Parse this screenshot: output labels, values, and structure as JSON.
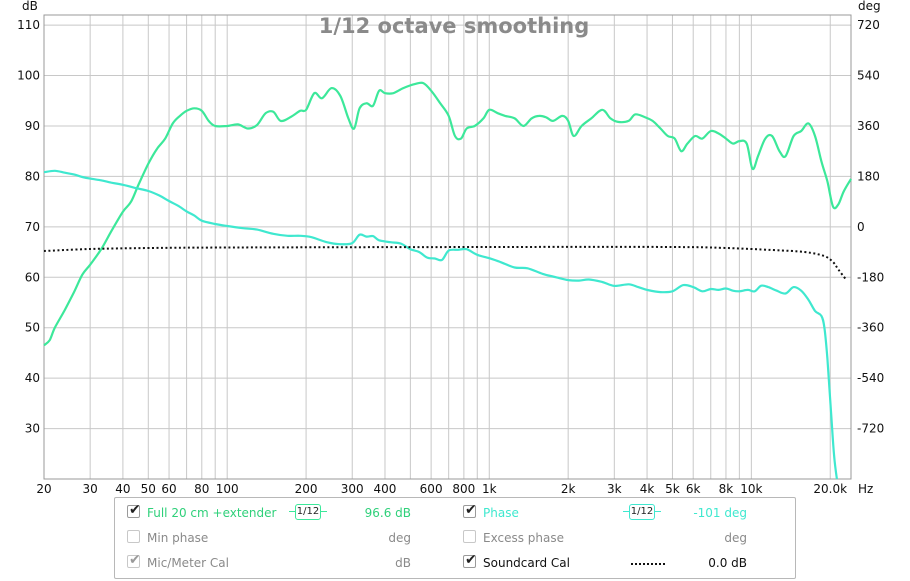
{
  "chart_data": {
    "type": "line",
    "title": "1/12 octave smoothing",
    "xscale": "log",
    "xlim": [
      20,
      24000
    ],
    "x_ticks": [
      {
        "v": 20,
        "l": "20"
      },
      {
        "v": 30,
        "l": "30"
      },
      {
        "v": 40,
        "l": "40"
      },
      {
        "v": 50,
        "l": "50"
      },
      {
        "v": 60,
        "l": "60"
      },
      {
        "v": 80,
        "l": "80"
      },
      {
        "v": 100,
        "l": "100"
      },
      {
        "v": 200,
        "l": "200"
      },
      {
        "v": 300,
        "l": "300"
      },
      {
        "v": 400,
        "l": "400"
      },
      {
        "v": 600,
        "l": "600"
      },
      {
        "v": 800,
        "l": "800"
      },
      {
        "v": 1000,
        "l": "1k"
      },
      {
        "v": 2000,
        "l": "2k"
      },
      {
        "v": 3000,
        "l": "3k"
      },
      {
        "v": 4000,
        "l": "4k"
      },
      {
        "v": 5000,
        "l": "5k"
      },
      {
        "v": 6000,
        "l": "6k"
      },
      {
        "v": 8000,
        "l": "8k"
      },
      {
        "v": 10000,
        "l": "10k"
      },
      {
        "v": 20000,
        "l": "20.0k"
      }
    ],
    "x_unit": "Hz",
    "x_minor": [
      20,
      30,
      40,
      50,
      60,
      70,
      80,
      90,
      100,
      200,
      300,
      400,
      500,
      600,
      700,
      800,
      900,
      1000,
      2000,
      3000,
      4000,
      5000,
      6000,
      7000,
      8000,
      9000,
      10000,
      20000
    ],
    "y_left": {
      "unit": "dB",
      "lim": [
        20,
        112
      ],
      "ticks": [
        110,
        100,
        90,
        80,
        70,
        60,
        50,
        40,
        30
      ]
    },
    "y_right": {
      "unit": "deg",
      "lim": [
        -900,
        756
      ],
      "ticks": [
        720,
        540,
        360,
        180,
        0,
        -180,
        -360,
        -540,
        -720
      ]
    },
    "grid": true,
    "series": [
      {
        "name": "Full 20 cm +extender",
        "color": "#3ce89a",
        "axis": "left",
        "style": "solid",
        "points": [
          [
            20,
            46.5
          ],
          [
            21,
            47.5
          ],
          [
            22,
            50
          ],
          [
            24,
            53.5
          ],
          [
            26,
            57
          ],
          [
            28,
            60.5
          ],
          [
            30,
            62.5
          ],
          [
            33,
            65.5
          ],
          [
            36,
            69
          ],
          [
            40,
            73
          ],
          [
            43,
            75
          ],
          [
            46,
            78.5
          ],
          [
            50,
            82.5
          ],
          [
            54,
            85.5
          ],
          [
            58,
            87.5
          ],
          [
            62,
            90.5
          ],
          [
            66,
            92
          ],
          [
            70,
            93
          ],
          [
            75,
            93.5
          ],
          [
            80,
            93
          ],
          [
            85,
            91
          ],
          [
            90,
            90
          ],
          [
            100,
            90
          ],
          [
            110,
            90.3
          ],
          [
            120,
            89.5
          ],
          [
            130,
            90.2
          ],
          [
            140,
            92.5
          ],
          [
            150,
            92.8
          ],
          [
            160,
            91
          ],
          [
            175,
            91.8
          ],
          [
            190,
            93
          ],
          [
            200,
            93.2
          ],
          [
            215,
            96.5
          ],
          [
            230,
            95.5
          ],
          [
            250,
            97.5
          ],
          [
            270,
            96
          ],
          [
            290,
            91.5
          ],
          [
            305,
            89.5
          ],
          [
            320,
            93.5
          ],
          [
            340,
            94.5
          ],
          [
            360,
            94
          ],
          [
            380,
            97
          ],
          [
            400,
            96.5
          ],
          [
            430,
            96.5
          ],
          [
            470,
            97.5
          ],
          [
            520,
            98.3
          ],
          [
            560,
            98.5
          ],
          [
            600,
            97
          ],
          [
            650,
            94.5
          ],
          [
            700,
            92
          ],
          [
            740,
            88
          ],
          [
            780,
            87.5
          ],
          [
            820,
            89.5
          ],
          [
            880,
            90
          ],
          [
            950,
            91.5
          ],
          [
            1000,
            93.2
          ],
          [
            1080,
            92.5
          ],
          [
            1150,
            92
          ],
          [
            1250,
            91.5
          ],
          [
            1350,
            90
          ],
          [
            1450,
            91.5
          ],
          [
            1550,
            92
          ],
          [
            1650,
            91.7
          ],
          [
            1750,
            91
          ],
          [
            1900,
            92
          ],
          [
            2000,
            91
          ],
          [
            2100,
            88
          ],
          [
            2250,
            90
          ],
          [
            2450,
            91.5
          ],
          [
            2700,
            93.2
          ],
          [
            2900,
            91.5
          ],
          [
            3100,
            90.8
          ],
          [
            3400,
            91
          ],
          [
            3600,
            92.3
          ],
          [
            3900,
            91.8
          ],
          [
            4200,
            91
          ],
          [
            4500,
            89.5
          ],
          [
            4800,
            88
          ],
          [
            5100,
            87.5
          ],
          [
            5400,
            85
          ],
          [
            5700,
            86.5
          ],
          [
            6100,
            88
          ],
          [
            6500,
            87.5
          ],
          [
            7000,
            89
          ],
          [
            7500,
            88.5
          ],
          [
            8000,
            87.5
          ],
          [
            8500,
            86.5
          ],
          [
            9000,
            87
          ],
          [
            9600,
            86.5
          ],
          [
            10100,
            81.5
          ],
          [
            10600,
            84
          ],
          [
            11300,
            87.5
          ],
          [
            12000,
            88
          ],
          [
            12800,
            85
          ],
          [
            13500,
            84
          ],
          [
            14500,
            88
          ],
          [
            15500,
            89
          ],
          [
            16500,
            90.5
          ],
          [
            17500,
            88
          ],
          [
            18500,
            83
          ],
          [
            19500,
            79
          ],
          [
            20500,
            74
          ],
          [
            21500,
            74.5
          ],
          [
            22500,
            77
          ],
          [
            24000,
            79.5
          ]
        ]
      },
      {
        "name": "Phase",
        "color": "#3fe8cf",
        "axis": "right",
        "style": "solid",
        "points": [
          [
            20,
            195
          ],
          [
            22,
            200
          ],
          [
            24,
            193
          ],
          [
            26,
            187
          ],
          [
            28,
            178
          ],
          [
            30,
            172
          ],
          [
            33,
            166
          ],
          [
            36,
            158
          ],
          [
            40,
            150
          ],
          [
            45,
            138
          ],
          [
            50,
            128
          ],
          [
            55,
            112
          ],
          [
            60,
            92
          ],
          [
            65,
            75
          ],
          [
            70,
            55
          ],
          [
            75,
            40
          ],
          [
            80,
            22
          ],
          [
            90,
            10
          ],
          [
            100,
            3
          ],
          [
            115,
            -5
          ],
          [
            130,
            -10
          ],
          [
            150,
            -25
          ],
          [
            170,
            -32
          ],
          [
            190,
            -32
          ],
          [
            210,
            -37
          ],
          [
            240,
            -55
          ],
          [
            270,
            -62
          ],
          [
            300,
            -58
          ],
          [
            320,
            -28
          ],
          [
            340,
            -35
          ],
          [
            360,
            -33
          ],
          [
            380,
            -48
          ],
          [
            420,
            -55
          ],
          [
            460,
            -60
          ],
          [
            500,
            -80
          ],
          [
            540,
            -90
          ],
          [
            580,
            -110
          ],
          [
            620,
            -113
          ],
          [
            660,
            -118
          ],
          [
            700,
            -85
          ],
          [
            760,
            -82
          ],
          [
            820,
            -80
          ],
          [
            900,
            -100
          ],
          [
            1000,
            -112
          ],
          [
            1100,
            -125
          ],
          [
            1250,
            -145
          ],
          [
            1400,
            -148
          ],
          [
            1600,
            -168
          ],
          [
            1800,
            -180
          ],
          [
            2000,
            -190
          ],
          [
            2200,
            -192
          ],
          [
            2400,
            -188
          ],
          [
            2700,
            -197
          ],
          [
            3000,
            -211
          ],
          [
            3400,
            -205
          ],
          [
            3700,
            -215
          ],
          [
            4000,
            -225
          ],
          [
            4500,
            -233
          ],
          [
            5000,
            -230
          ],
          [
            5500,
            -208
          ],
          [
            6000,
            -215
          ],
          [
            6500,
            -230
          ],
          [
            7000,
            -222
          ],
          [
            7500,
            -225
          ],
          [
            8000,
            -220
          ],
          [
            8500,
            -228
          ],
          [
            9000,
            -230
          ],
          [
            9700,
            -225
          ],
          [
            10300,
            -230
          ],
          [
            10900,
            -210
          ],
          [
            11600,
            -215
          ],
          [
            12500,
            -228
          ],
          [
            13500,
            -238
          ],
          [
            14500,
            -215
          ],
          [
            15500,
            -228
          ],
          [
            16500,
            -260
          ],
          [
            17500,
            -300
          ],
          [
            18500,
            -318
          ],
          [
            19000,
            -360
          ],
          [
            19500,
            -470
          ],
          [
            20200,
            -680
          ],
          [
            20700,
            -820
          ],
          [
            21200,
            -900
          ]
        ]
      },
      {
        "name": "Soundcard Cal",
        "color": "#111111",
        "axis": "left",
        "style": "dotted",
        "points": [
          [
            20,
            65.2
          ],
          [
            30,
            65.6
          ],
          [
            50,
            65.8
          ],
          [
            100,
            65.9
          ],
          [
            1000,
            66
          ],
          [
            5000,
            66
          ],
          [
            8000,
            65.8
          ],
          [
            12000,
            65.4
          ],
          [
            16000,
            65
          ],
          [
            19000,
            64.2
          ],
          [
            20500,
            63
          ],
          [
            21500,
            61.5
          ],
          [
            23000,
            59.5
          ]
        ]
      }
    ]
  },
  "legend": {
    "row1": {
      "label": "Full 20 cm +extender",
      "smoothing_num": "1",
      "smoothing_den": "12",
      "value": "96.6 dB",
      "right_label": "Phase",
      "right_value": "-101 deg"
    },
    "row2": {
      "label": "Min phase",
      "value": "deg",
      "right_label": "Excess phase",
      "right_value": "deg"
    },
    "row3": {
      "label": "Mic/Meter Cal",
      "value": "dB",
      "right_label": "Soundcard Cal",
      "right_value": "0.0 dB"
    },
    "check_mark": "✔"
  },
  "colors": {
    "spl": "#3ce89a",
    "phase": "#3fe8cf",
    "cal": "#111111",
    "grid": "#c8c8c8",
    "title": "#8a8a8a"
  }
}
